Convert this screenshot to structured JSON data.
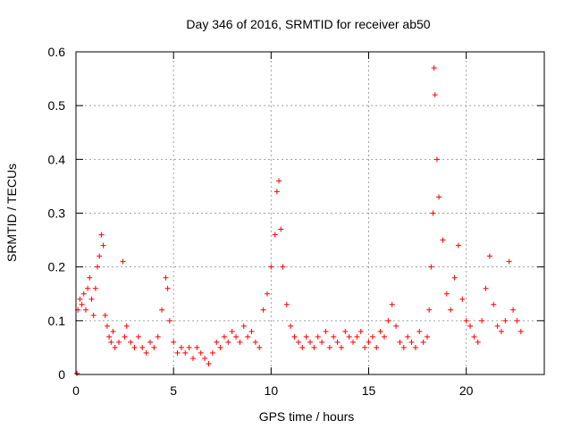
{
  "chart_data": {
    "type": "scatter",
    "title": "Day 346 of 2016, SRMTID for receiver ab50",
    "xlabel": "GPS time / hours",
    "ylabel": "SRMTID / TECUs",
    "xlim": [
      0,
      24
    ],
    "ylim": [
      0,
      0.6
    ],
    "xticks": [
      0,
      5,
      10,
      15,
      20
    ],
    "xtick_labels": [
      "0",
      "5",
      "10",
      "15",
      "20"
    ],
    "yticks": [
      0,
      0.1,
      0.2,
      0.3,
      0.4,
      0.5,
      0.6
    ],
    "ytick_labels": [
      "0",
      "0.1",
      "0.2",
      "0.3",
      "0.4",
      "0.5",
      "0.6"
    ],
    "grid": true,
    "marker": "+",
    "color": "#ff0000",
    "series": [
      {
        "name": "ab50",
        "x": [
          0.05,
          0.1,
          0.2,
          0.3,
          0.4,
          0.5,
          0.6,
          0.7,
          0.8,
          0.9,
          1.0,
          1.1,
          1.2,
          1.3,
          1.4,
          1.5,
          1.6,
          1.7,
          1.8,
          1.9,
          2.0,
          2.2,
          2.4,
          2.5,
          2.6,
          2.8,
          3.0,
          3.2,
          3.4,
          3.6,
          3.8,
          4.0,
          4.2,
          4.4,
          4.6,
          4.7,
          4.8,
          5.0,
          5.2,
          5.4,
          5.6,
          5.8,
          6.0,
          6.2,
          6.4,
          6.6,
          6.8,
          7.0,
          7.2,
          7.4,
          7.6,
          7.8,
          8.0,
          8.2,
          8.4,
          8.6,
          8.8,
          9.0,
          9.2,
          9.4,
          9.6,
          9.8,
          10.0,
          10.2,
          10.3,
          10.4,
          10.5,
          10.6,
          10.8,
          11.0,
          11.2,
          11.4,
          11.6,
          11.8,
          12.0,
          12.2,
          12.4,
          12.6,
          12.8,
          13.0,
          13.2,
          13.4,
          13.6,
          13.8,
          14.0,
          14.2,
          14.4,
          14.6,
          14.8,
          15.0,
          15.2,
          15.4,
          15.6,
          15.8,
          16.0,
          16.2,
          16.4,
          16.6,
          16.8,
          17.0,
          17.2,
          17.4,
          17.6,
          17.8,
          18.0,
          18.1,
          18.2,
          18.3,
          18.35,
          18.4,
          18.5,
          18.6,
          18.8,
          19.0,
          19.2,
          19.4,
          19.6,
          19.8,
          20.0,
          20.2,
          20.4,
          20.6,
          20.8,
          21.0,
          21.2,
          21.4,
          21.6,
          21.8,
          22.0,
          22.2,
          22.4,
          22.6,
          22.8
        ],
        "y": [
          0.002,
          0.12,
          0.14,
          0.13,
          0.15,
          0.12,
          0.16,
          0.18,
          0.14,
          0.11,
          0.16,
          0.2,
          0.22,
          0.26,
          0.24,
          0.11,
          0.09,
          0.07,
          0.06,
          0.08,
          0.05,
          0.06,
          0.21,
          0.07,
          0.09,
          0.06,
          0.05,
          0.07,
          0.05,
          0.04,
          0.06,
          0.05,
          0.07,
          0.12,
          0.18,
          0.16,
          0.1,
          0.06,
          0.04,
          0.05,
          0.04,
          0.05,
          0.03,
          0.05,
          0.04,
          0.03,
          0.02,
          0.04,
          0.06,
          0.05,
          0.07,
          0.06,
          0.08,
          0.07,
          0.06,
          0.09,
          0.07,
          0.08,
          0.06,
          0.05,
          0.12,
          0.15,
          0.2,
          0.26,
          0.34,
          0.36,
          0.27,
          0.2,
          0.13,
          0.09,
          0.07,
          0.06,
          0.05,
          0.07,
          0.06,
          0.05,
          0.07,
          0.06,
          0.08,
          0.05,
          0.07,
          0.06,
          0.05,
          0.08,
          0.07,
          0.06,
          0.07,
          0.08,
          0.05,
          0.06,
          0.07,
          0.05,
          0.08,
          0.07,
          0.1,
          0.13,
          0.09,
          0.06,
          0.05,
          0.07,
          0.06,
          0.05,
          0.08,
          0.06,
          0.07,
          0.12,
          0.2,
          0.3,
          0.57,
          0.52,
          0.4,
          0.33,
          0.25,
          0.15,
          0.12,
          0.18,
          0.24,
          0.14,
          0.1,
          0.09,
          0.07,
          0.06,
          0.1,
          0.16,
          0.22,
          0.13,
          0.09,
          0.08,
          0.1,
          0.21,
          0.12,
          0.1,
          0.08
        ]
      }
    ]
  }
}
